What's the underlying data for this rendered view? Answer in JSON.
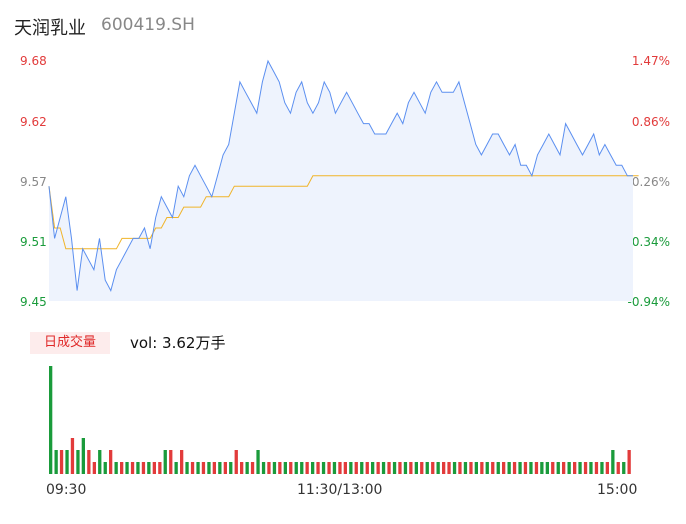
{
  "header": {
    "name": "天润乳业",
    "code": "600419.SH"
  },
  "axes": {
    "price_ticks": [
      "9.68",
      "9.62",
      "9.57",
      "9.51",
      "9.45"
    ],
    "pct_ticks": [
      "1.47%",
      "0.86%",
      "0.26%",
      "-0.34%",
      "-0.94%"
    ]
  },
  "volume": {
    "badge": "日成交量",
    "label": "vol: 3.62万手"
  },
  "time_labels": [
    "09:30",
    "11:30/13:00",
    "15:00"
  ],
  "colors": {
    "price_line": "#5b8ff0",
    "avg_line": "#f0b429",
    "area_fill": "#eef3fd",
    "up": "#e23b3b",
    "down": "#1a9b3b",
    "up_label": "#e23b3b",
    "down_label": "#1a9b3b",
    "neutral_label": "#888888"
  },
  "chart_data": {
    "type": "line",
    "ylim": [
      9.45,
      9.68
    ],
    "pct_range": [
      -0.94,
      1.47
    ],
    "x_ticks": [
      "09:30",
      "11:30/13:00",
      "15:00"
    ],
    "series": [
      {
        "values": [
          9.56,
          9.51,
          9.53,
          9.55,
          9.51,
          9.46,
          9.5,
          9.49,
          9.48,
          9.51,
          9.47,
          9.46,
          9.48,
          9.49,
          9.5,
          9.51,
          9.51,
          9.52,
          9.5,
          9.53,
          9.55,
          9.54,
          9.53,
          9.56,
          9.55,
          9.57,
          9.58,
          9.57,
          9.56,
          9.55,
          9.57,
          9.59,
          9.6,
          9.63,
          9.66,
          9.65,
          9.64,
          9.63,
          9.66,
          9.68,
          9.67,
          9.66,
          9.64,
          9.63,
          9.65,
          9.66,
          9.64,
          9.63,
          9.64,
          9.66,
          9.65,
          9.63,
          9.64,
          9.65,
          9.64,
          9.63,
          9.62,
          9.62,
          9.61,
          9.61,
          9.61,
          9.62,
          9.63,
          9.62,
          9.64,
          9.65,
          9.64,
          9.63,
          9.65,
          9.66,
          9.65,
          9.65,
          9.65,
          9.66,
          9.64,
          9.62,
          9.6,
          9.59,
          9.6,
          9.61,
          9.61,
          9.6,
          9.59,
          9.6,
          9.58,
          9.58,
          9.57,
          9.59,
          9.6,
          9.61,
          9.6,
          9.59,
          9.62,
          9.61,
          9.6,
          9.59,
          9.6,
          9.61,
          9.59,
          9.6,
          9.59,
          9.58,
          9.58,
          9.57,
          9.57
        ]
      },
      {
        "values": [
          9.56,
          9.52,
          9.52,
          9.5,
          9.5,
          9.5,
          9.5,
          9.5,
          9.5,
          9.5,
          9.5,
          9.5,
          9.5,
          9.51,
          9.51,
          9.51,
          9.51,
          9.51,
          9.51,
          9.52,
          9.52,
          9.53,
          9.53,
          9.53,
          9.54,
          9.54,
          9.54,
          9.54,
          9.55,
          9.55,
          9.55,
          9.55,
          9.55,
          9.56,
          9.56,
          9.56,
          9.56,
          9.56,
          9.56,
          9.56,
          9.56,
          9.56,
          9.56,
          9.56,
          9.56,
          9.56,
          9.56,
          9.57,
          9.57,
          9.57,
          9.57,
          9.57,
          9.57,
          9.57,
          9.57,
          9.57,
          9.57,
          9.57,
          9.57,
          9.57,
          9.57,
          9.57,
          9.57,
          9.57,
          9.57,
          9.57,
          9.57,
          9.57,
          9.57,
          9.57,
          9.57,
          9.57,
          9.57,
          9.57,
          9.57,
          9.57,
          9.57,
          9.57,
          9.57,
          9.57,
          9.57,
          9.57,
          9.57,
          9.57,
          9.57,
          9.57,
          9.57,
          9.57,
          9.57,
          9.57,
          9.57,
          9.57,
          9.57,
          9.57,
          9.57,
          9.57,
          9.57,
          9.57,
          9.57,
          9.57,
          9.57,
          9.57,
          9.57,
          9.57,
          9.57,
          9.57
        ]
      }
    ],
    "volume_series": {
      "values": [
        9,
        2,
        2,
        2,
        3,
        2,
        3,
        2,
        1,
        2,
        1,
        2,
        1,
        1,
        1,
        1,
        1,
        1,
        1,
        1,
        1,
        2,
        2,
        1,
        2,
        1,
        1,
        1,
        1,
        1,
        1,
        1,
        1,
        1,
        2,
        1,
        1,
        1,
        2,
        1,
        1,
        1,
        1,
        1,
        1,
        1,
        1,
        1,
        1,
        1,
        1,
        1,
        1,
        1,
        1,
        1,
        1,
        1,
        1,
        1,
        1,
        1,
        1,
        1,
        1,
        1,
        1,
        1,
        1,
        1,
        1,
        1,
        1,
        1,
        1,
        1,
        1,
        1,
        1,
        1,
        1,
        1,
        1,
        1,
        1,
        1,
        1,
        1,
        1,
        1,
        1,
        1,
        1,
        1,
        1,
        1,
        1,
        1,
        1,
        1,
        1,
        1,
        1,
        2,
        1,
        1,
        2
      ],
      "up": [
        0,
        0,
        1,
        0,
        1,
        0,
        0,
        1,
        1,
        0,
        0,
        1,
        0,
        1,
        0,
        1,
        0,
        1,
        0,
        1,
        1,
        0,
        1,
        0,
        1,
        0,
        1,
        0,
        1,
        0,
        1,
        0,
        1,
        0,
        1,
        1,
        0,
        1,
        0,
        0,
        1,
        0,
        1,
        0,
        1,
        0,
        0,
        1,
        0,
        1,
        0,
        1,
        0,
        1,
        1,
        0,
        1,
        0,
        1,
        0,
        1,
        0,
        1,
        0,
        1,
        0,
        1,
        0,
        1,
        0,
        1,
        0,
        1,
        1,
        0,
        1,
        0,
        1,
        0,
        1,
        0,
        1,
        0,
        1,
        0,
        1,
        0,
        1,
        0,
        1,
        0,
        0,
        1,
        0,
        1,
        0,
        1,
        0,
        1,
        0,
        1,
        0,
        1,
        0,
        1,
        0,
        1
      ]
    }
  }
}
